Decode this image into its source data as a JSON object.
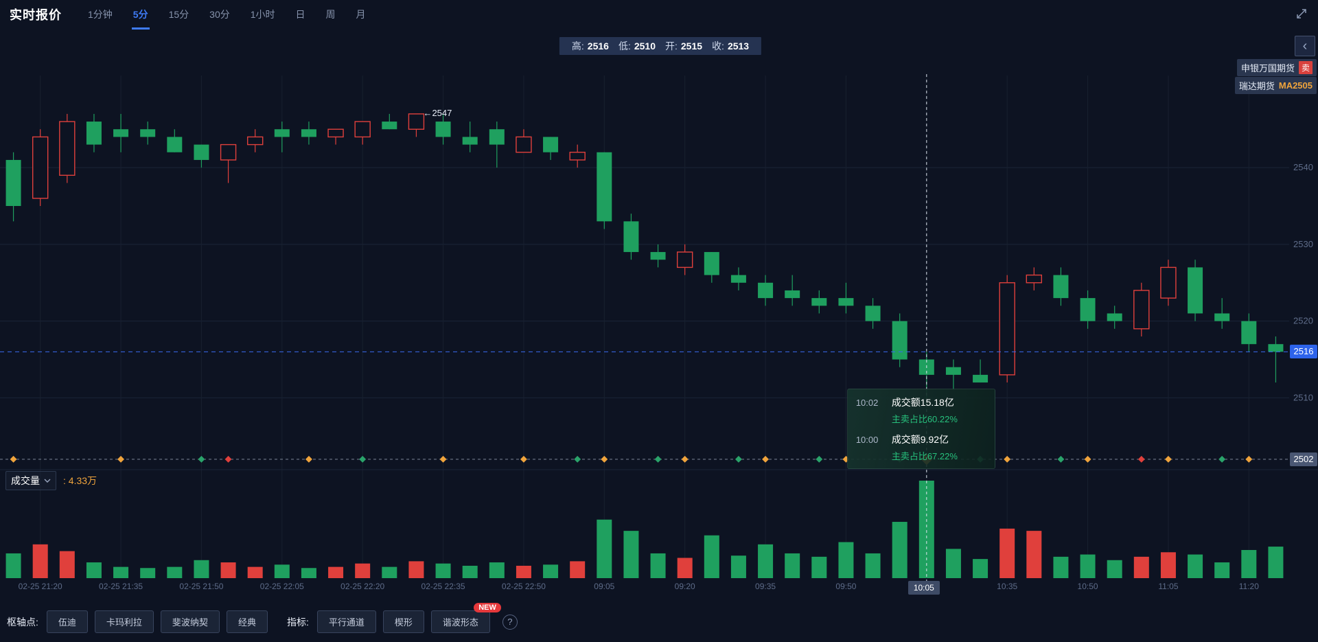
{
  "header": {
    "title": "实时报价",
    "tabs": [
      {
        "label": "1分钟"
      },
      {
        "label": "5分",
        "active": true
      },
      {
        "label": "15分"
      },
      {
        "label": "30分"
      },
      {
        "label": "1小时"
      },
      {
        "label": "日"
      },
      {
        "label": "周"
      },
      {
        "label": "月"
      }
    ]
  },
  "ohlc_bar": {
    "items": [
      {
        "label": "高:",
        "value": "2516"
      },
      {
        "label": "低:",
        "value": "2510"
      },
      {
        "label": "开:",
        "value": "2515"
      },
      {
        "label": "收:",
        "value": "2513"
      }
    ]
  },
  "side_panel": {
    "collapse_glyph": "‹"
  },
  "broker_tags": [
    {
      "name": "申银万国期货",
      "tag": "卖"
    },
    {
      "name": "瑞达期货",
      "tag": "MA2505"
    }
  ],
  "tooltip": {
    "rows": [
      {
        "time": "10:02",
        "turnover": "成交额15.18亿",
        "ratio": "主卖占比60.22%"
      },
      {
        "time": "10:00",
        "turnover": "成交额9.92亿",
        "ratio": "主卖占比67.22%"
      }
    ]
  },
  "volume_header": {
    "label": "成交量",
    "value": ": 4.33万"
  },
  "footer": {
    "pivot_label": "枢轴点:",
    "pivot_buttons": [
      "伍迪",
      "卡玛利拉",
      "斐波纳契",
      "经典"
    ],
    "indicator_label": "指标:",
    "indicator_buttons": [
      "平行通道",
      "楔形",
      "谐波形态"
    ],
    "new_badge": "NEW",
    "help_glyph": "?"
  },
  "chart_data": {
    "type": "candlestick",
    "title": "",
    "xlabel": "",
    "ylabel": "",
    "ylim": [
      2501,
      2552
    ],
    "y_ticks": [
      2540,
      2530,
      2520,
      2510
    ],
    "grid": true,
    "current_price": 2516,
    "current_price_label": "2516",
    "baseline_price": 2502,
    "baseline_price_label": "2502",
    "high_annotation": {
      "index": 15,
      "price": 2547,
      "label": "←2547"
    },
    "crosshair_index": 34,
    "crosshair_time_label": "10:05",
    "volume_max": 4.33,
    "colors": {
      "up": "#e0403c",
      "down": "#1fa05f",
      "accent_blue": "#2d63ea",
      "accent_orange": "#f0a43c"
    },
    "candles": [
      [
        "",
        2541,
        2542,
        2533,
        2535,
        1.1
      ],
      [
        "02-25 21:20",
        2536,
        2545,
        2535,
        2544,
        1.5
      ],
      [
        "",
        2539,
        2547,
        2538,
        2546,
        1.2
      ],
      [
        "",
        2546,
        2547,
        2542,
        2543,
        0.7
      ],
      [
        "02-25 21:35",
        2545,
        2547,
        2542,
        2544,
        0.5
      ],
      [
        "",
        2545,
        2546,
        2543,
        2544,
        0.45
      ],
      [
        "",
        2544,
        2545,
        2542,
        2542,
        0.5
      ],
      [
        "02-25 21:50",
        2543,
        2543,
        2540,
        2541,
        0.8
      ],
      [
        "",
        2541,
        2543,
        2538,
        2543,
        0.7
      ],
      [
        "",
        2543,
        2545,
        2542,
        2544,
        0.5
      ],
      [
        "02-25 22:05",
        2545,
        2546,
        2542,
        2544,
        0.6
      ],
      [
        "",
        2545,
        2546,
        2543,
        2544,
        0.45
      ],
      [
        "",
        2544,
        2545,
        2543,
        2545,
        0.5
      ],
      [
        "02-25 22:20",
        2544,
        2546,
        2543,
        2546,
        0.65
      ],
      [
        "",
        2546,
        2547,
        2545,
        2545,
        0.5
      ],
      [
        "",
        2545,
        2547,
        2544,
        2547,
        0.75
      ],
      [
        "02-25 22:35",
        2546,
        2547,
        2543,
        2544,
        0.65
      ],
      [
        "",
        2544,
        2546,
        2542,
        2543,
        0.55
      ],
      [
        "",
        2545,
        2546,
        2540,
        2543,
        0.7
      ],
      [
        "02-25 22:50",
        2542,
        2545,
        2542,
        2544,
        0.55
      ],
      [
        "",
        2544,
        2544,
        2541,
        2542,
        0.6
      ],
      [
        "",
        2541,
        2543,
        2540,
        2542,
        0.75
      ],
      [
        "09:05",
        2542,
        2542,
        2532,
        2533,
        2.6
      ],
      [
        "",
        2533,
        2534,
        2528,
        2529,
        2.1
      ],
      [
        "",
        2529,
        2530,
        2527,
        2528,
        1.1
      ],
      [
        "09:20",
        2527,
        2530,
        2526,
        2529,
        0.9
      ],
      [
        "",
        2529,
        2529,
        2525,
        2526,
        1.9
      ],
      [
        "",
        2526,
        2527,
        2524,
        2525,
        1.0
      ],
      [
        "09:35",
        2525,
        2526,
        2522,
        2523,
        1.5
      ],
      [
        "",
        2524,
        2526,
        2522,
        2523,
        1.1
      ],
      [
        "",
        2523,
        2524,
        2521,
        2522,
        0.95
      ],
      [
        "09:50",
        2523,
        2525,
        2521,
        2522,
        1.6
      ],
      [
        "",
        2522,
        2523,
        2519,
        2520,
        1.1
      ],
      [
        "",
        2520,
        2521,
        2514,
        2515,
        2.5
      ],
      [
        "10:05",
        2515,
        2516,
        2510,
        2513,
        4.33
      ],
      [
        "",
        2514,
        2515,
        2511,
        2513,
        1.3
      ],
      [
        "",
        2513,
        2515,
        2512,
        2512,
        0.85
      ],
      [
        "10:35",
        2513,
        2526,
        2512,
        2525,
        2.2
      ],
      [
        "",
        2525,
        2527,
        2524,
        2526,
        2.1
      ],
      [
        "",
        2526,
        2527,
        2522,
        2523,
        0.95
      ],
      [
        "10:50",
        2523,
        2524,
        2519,
        2520,
        1.05
      ],
      [
        "",
        2521,
        2522,
        2519,
        2520,
        0.8
      ],
      [
        "",
        2519,
        2525,
        2518,
        2524,
        0.95
      ],
      [
        "11:05",
        2523,
        2528,
        2522,
        2527,
        1.15
      ],
      [
        "",
        2527,
        2528,
        2520,
        2521,
        1.05
      ],
      [
        "",
        2521,
        2523,
        2519,
        2520,
        0.7
      ],
      [
        "11:20",
        2520,
        2521,
        2516,
        2517,
        1.25
      ],
      [
        "",
        2517,
        2518,
        2512,
        2516,
        1.4
      ]
    ],
    "baseline_markers": [
      {
        "i": 0,
        "c": "#f0a43c"
      },
      {
        "i": 4,
        "c": "#f0a43c"
      },
      {
        "i": 7,
        "c": "#2aa36a"
      },
      {
        "i": 8,
        "c": "#e0403c"
      },
      {
        "i": 11,
        "c": "#f0a43c"
      },
      {
        "i": 13,
        "c": "#2aa36a"
      },
      {
        "i": 16,
        "c": "#f0a43c"
      },
      {
        "i": 19,
        "c": "#f0a43c"
      },
      {
        "i": 21,
        "c": "#2aa36a"
      },
      {
        "i": 22,
        "c": "#f0a43c"
      },
      {
        "i": 24,
        "c": "#2aa36a"
      },
      {
        "i": 25,
        "c": "#f0a43c"
      },
      {
        "i": 27,
        "c": "#2aa36a"
      },
      {
        "i": 28,
        "c": "#f0a43c"
      },
      {
        "i": 30,
        "c": "#2aa36a"
      },
      {
        "i": 31,
        "c": "#f0a43c"
      },
      {
        "i": 33,
        "c": "#2aa36a"
      },
      {
        "i": 34,
        "c": "#f0a43c",
        "big": true
      },
      {
        "i": 36,
        "c": "#2aa36a"
      },
      {
        "i": 37,
        "c": "#f0a43c"
      },
      {
        "i": 39,
        "c": "#2aa36a"
      },
      {
        "i": 40,
        "c": "#f0a43c"
      },
      {
        "i": 42,
        "c": "#e0403c"
      },
      {
        "i": 43,
        "c": "#f0a43c"
      },
      {
        "i": 45,
        "c": "#2aa36a"
      },
      {
        "i": 46,
        "c": "#f0a43c"
      }
    ]
  }
}
